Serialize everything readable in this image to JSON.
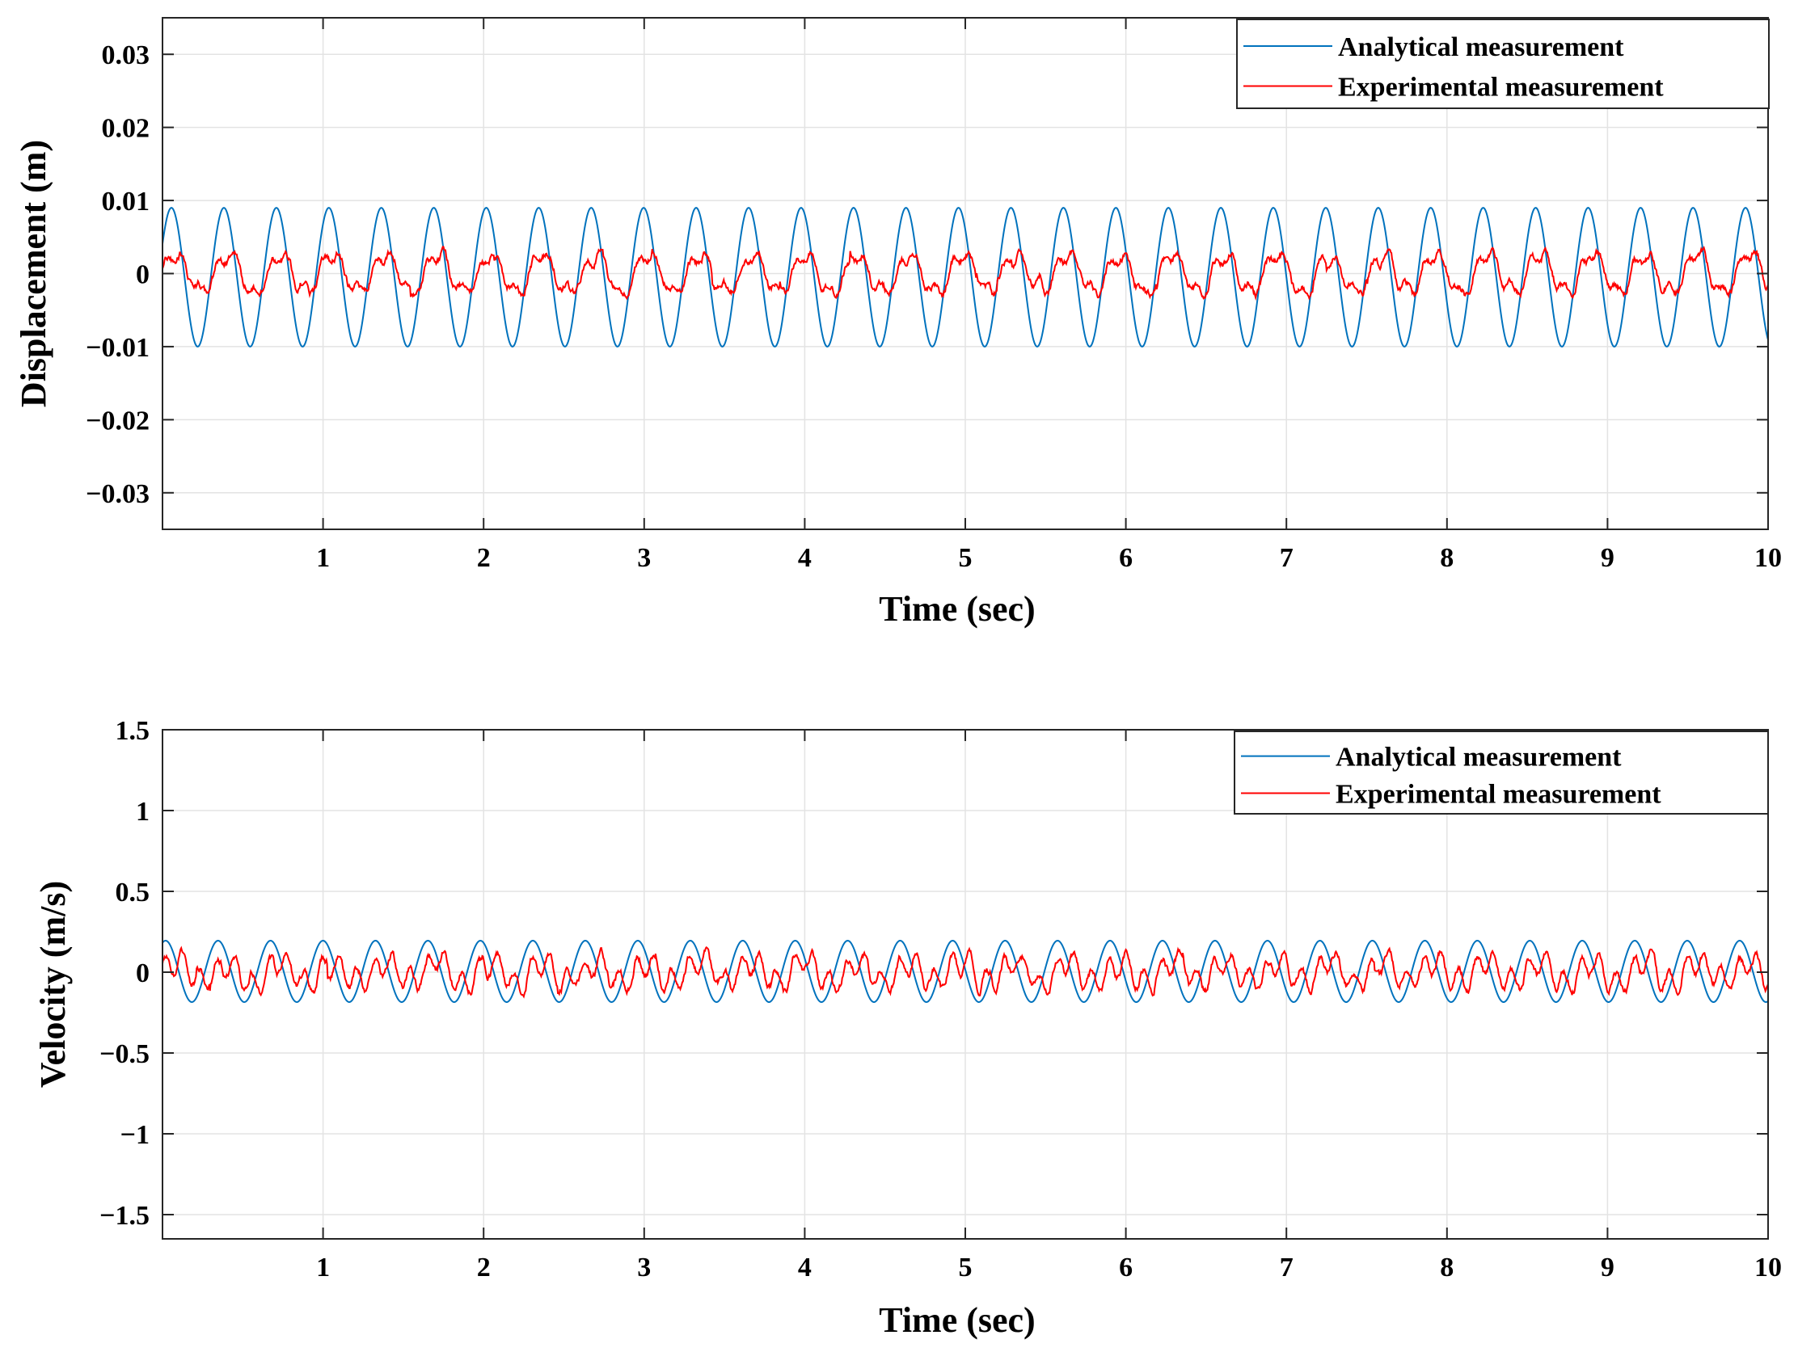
{
  "chart_data": [
    {
      "type": "line",
      "title": "",
      "xlabel": "Time (sec)",
      "ylabel": "Displacement (m)",
      "xlim": [
        0,
        10
      ],
      "ylim": [
        -0.035,
        0.035
      ],
      "grid": true,
      "xticks": [
        1,
        2,
        3,
        4,
        5,
        6,
        7,
        8,
        9,
        10
      ],
      "xtick_labels": [
        "1",
        "2",
        "3",
        "4",
        "5",
        "6",
        "7",
        "8",
        "9",
        "10"
      ],
      "yticks": [
        -0.03,
        -0.02,
        -0.01,
        0,
        0.01,
        0.02,
        0.03
      ],
      "ytick_labels": [
        "−0.03",
        "−0.02",
        "−0.01",
        "0",
        "0.01",
        "0.02",
        "0.03"
      ],
      "legend_position": "top-right",
      "series": [
        {
          "name": "Analytical measurement",
          "color": "#0072BD",
          "kind": "sine",
          "amplitude": 0.0095,
          "offset": -0.0005,
          "frequency_hz": 3.06,
          "phase_rad": 0.5
        },
        {
          "name": "Experimental measurement",
          "color": "#FF0000",
          "kind": "noisy",
          "amplitude": 0.0025,
          "offset": 0,
          "frequency_hz": 3.06,
          "harmonic_ratio": 0.35,
          "noise": 0.0009,
          "min": -0.005,
          "max": 0.005
        }
      ]
    },
    {
      "type": "line",
      "title": "",
      "xlabel": "Time (sec)",
      "ylabel": "Velocity (m/s)",
      "xlim": [
        0,
        10
      ],
      "ylim": [
        -1.65,
        1.5
      ],
      "grid": true,
      "xticks": [
        1,
        2,
        3,
        4,
        5,
        6,
        7,
        8,
        9,
        10
      ],
      "xtick_labels": [
        "1",
        "2",
        "3",
        "4",
        "5",
        "6",
        "7",
        "8",
        "9",
        "10"
      ],
      "yticks": [
        -1.5,
        -1,
        -0.5,
        0,
        0.5,
        1,
        1.5
      ],
      "ytick_labels": [
        "−1.5",
        "−1",
        "−0.5",
        "0",
        "0.5",
        "1",
        "1.5"
      ],
      "legend_position": "top-right",
      "series": [
        {
          "name": "Analytical measurement",
          "color": "#0072BD",
          "kind": "sine",
          "amplitude": 0.19,
          "offset": 0.005,
          "frequency_hz": 3.06,
          "phase_rad": 1.2
        },
        {
          "name": "Experimental measurement",
          "color": "#FF0000",
          "kind": "noisy",
          "amplitude": 0.06,
          "offset": 0,
          "frequency_hz": 3.06,
          "harmonic_ratio": 1.2,
          "noise": 0.04,
          "min": -0.17,
          "max": 0.2
        }
      ]
    }
  ]
}
